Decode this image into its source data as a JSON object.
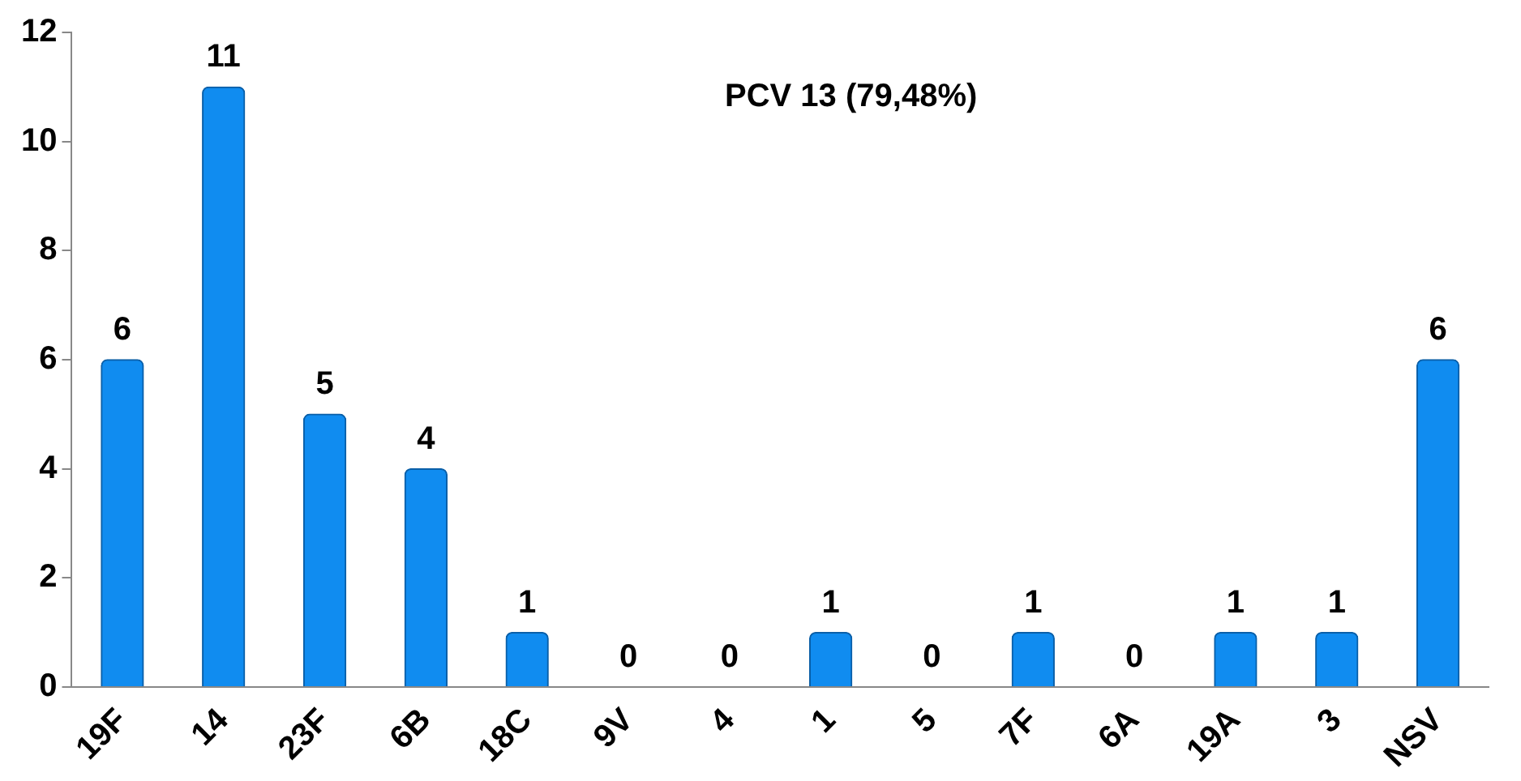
{
  "chart_data": {
    "type": "bar",
    "categories": [
      "19F",
      "14",
      "23F",
      "6B",
      "18C",
      "9V",
      "4",
      "1",
      "5",
      "7F",
      "6A",
      "19A",
      "3",
      "NSV"
    ],
    "values": [
      6,
      11,
      5,
      4,
      1,
      0,
      0,
      1,
      0,
      1,
      0,
      1,
      1,
      6
    ],
    "color": "#108cf0",
    "ylim": [
      0,
      12
    ],
    "yticks": [
      0,
      2,
      4,
      6,
      8,
      10,
      12
    ],
    "grid": false,
    "legend": false,
    "data_labels": true,
    "annotations": [
      "PCV 13 (79,48%)"
    ]
  }
}
